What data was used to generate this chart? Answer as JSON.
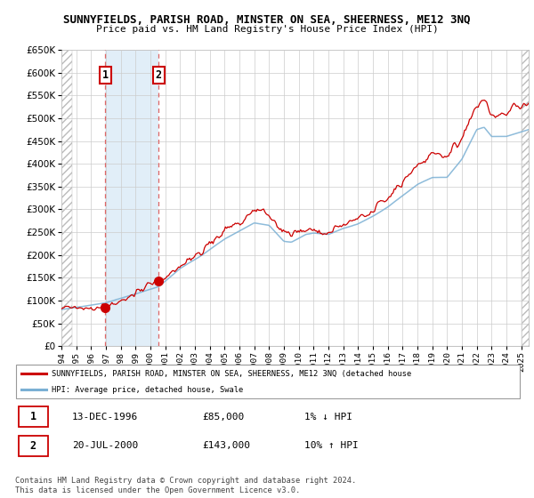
{
  "title": "SUNNYFIELDS, PARISH ROAD, MINSTER ON SEA, SHEERNESS, ME12 3NQ",
  "subtitle": "Price paid vs. HM Land Registry's House Price Index (HPI)",
  "legend_line1": "SUNNYFIELDS, PARISH ROAD, MINSTER ON SEA, SHEERNESS, ME12 3NQ (detached house",
  "legend_line2": "HPI: Average price, detached house, Swale",
  "copyright": "Contains HM Land Registry data © Crown copyright and database right 2024.\nThis data is licensed under the Open Government Licence v3.0.",
  "table": [
    {
      "num": "1",
      "date": "13-DEC-1996",
      "price": "£85,000",
      "hpi": "1% ↓ HPI"
    },
    {
      "num": "2",
      "date": "20-JUL-2000",
      "price": "£143,000",
      "hpi": "10% ↑ HPI"
    }
  ],
  "sale1_year": 1996.95,
  "sale1_price": 85000,
  "sale2_year": 2000.55,
  "sale2_price": 143000,
  "ylim": [
    0,
    650000
  ],
  "xlim_start": 1994.0,
  "xlim_end": 2025.5,
  "shade_color": "#daeaf7",
  "grid_color": "#cccccc",
  "red_line_color": "#cc0000",
  "blue_line_color": "#7ab0d4",
  "dashed_line_color": "#dd6666"
}
